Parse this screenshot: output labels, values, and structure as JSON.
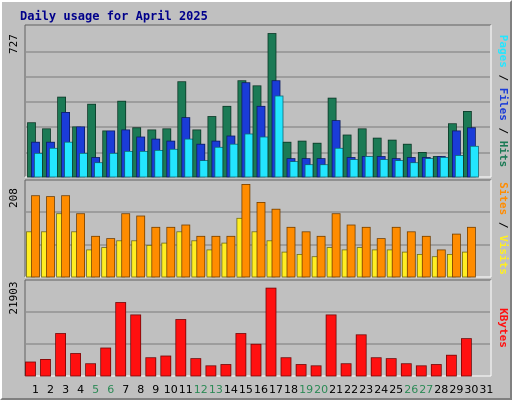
{
  "title": "Daily usage for April 2025",
  "colors": {
    "background": "#c0c0c0",
    "plot_background": "#c0c0c0",
    "grid": "#7a7a7a",
    "hits": "#1b7a55",
    "files": "#1a3cd8",
    "pages": "#23e6ff",
    "visits": "#ffee22",
    "sites": "#ff8c00",
    "kbytes": "#ff1010",
    "weekend_day": "#2c8a56",
    "weekday": "#000000"
  },
  "chart_data": [
    {
      "type": "bar",
      "name": "hits-files-pages",
      "scale_label": "727",
      "right_labels": [
        {
          "text": "Pages",
          "color": "#23e6ff"
        },
        {
          "text": " / ",
          "color": "#000000"
        },
        {
          "text": "Files",
          "color": "#1a3cd8"
        },
        {
          "text": " / ",
          "color": "#000000"
        },
        {
          "text": "Hits",
          "color": "#1b7a55"
        }
      ],
      "ymax": 727,
      "series": [
        {
          "name": "Hits",
          "values": [
            265,
            235,
            390,
            245,
            355,
            225,
            370,
            240,
            230,
            235,
            465,
            230,
            295,
            345,
            470,
            445,
            700,
            170,
            175,
            165,
            385,
            205,
            235,
            190,
            180,
            160,
            120,
            100,
            260,
            320,
            0
          ]
        },
        {
          "name": "Files",
          "values": [
            170,
            170,
            315,
            245,
            95,
            225,
            230,
            195,
            185,
            175,
            290,
            160,
            175,
            200,
            460,
            345,
            470,
            90,
            90,
            90,
            275,
            95,
            100,
            100,
            90,
            95,
            95,
            100,
            225,
            240,
            0
          ]
        },
        {
          "name": "Pages",
          "values": [
            115,
            140,
            170,
            115,
            70,
            115,
            125,
            125,
            130,
            135,
            185,
            80,
            145,
            160,
            210,
            195,
            395,
            75,
            60,
            60,
            140,
            85,
            100,
            85,
            80,
            70,
            90,
            95,
            105,
            150,
            0
          ]
        }
      ]
    },
    {
      "type": "bar",
      "name": "visits-sites",
      "scale_label": "208",
      "right_labels": [
        {
          "text": "Sites",
          "color": "#ff8c00"
        },
        {
          "text": " / ",
          "color": "#000000"
        },
        {
          "text": "Visits",
          "color": "#ffee22"
        }
      ],
      "ymax": 208,
      "series": [
        {
          "name": "Visits",
          "values": [
            100,
            100,
            140,
            100,
            60,
            65,
            80,
            80,
            70,
            75,
            100,
            80,
            60,
            75,
            130,
            100,
            80,
            55,
            50,
            45,
            65,
            60,
            65,
            60,
            60,
            55,
            50,
            45,
            50,
            55,
            0
          ]
        },
        {
          "name": "Sites",
          "values": [
            180,
            178,
            180,
            140,
            90,
            85,
            140,
            135,
            110,
            110,
            115,
            90,
            90,
            90,
            205,
            165,
            150,
            110,
            100,
            90,
            140,
            115,
            110,
            85,
            110,
            100,
            90,
            60,
            95,
            110,
            0
          ]
        }
      ]
    },
    {
      "type": "bar",
      "name": "kbytes",
      "scale_label": "21903",
      "right_labels": [
        {
          "text": "KBytes",
          "color": "#ff1010"
        }
      ],
      "ymax": 21903,
      "series": [
        {
          "name": "KBytes",
          "values": [
            3300,
            3900,
            10000,
            5300,
            2900,
            6600,
            17300,
            14400,
            4300,
            4700,
            13300,
            4100,
            2400,
            2700,
            10000,
            7500,
            20700,
            4300,
            2700,
            2400,
            14400,
            2900,
            9700,
            4300,
            4100,
            2900,
            2400,
            2700,
            4900,
            8800,
            0
          ]
        }
      ]
    }
  ],
  "x_axis": {
    "days": [
      "1",
      "2",
      "3",
      "4",
      "5",
      "6",
      "7",
      "8",
      "9",
      "10",
      "11",
      "12",
      "13",
      "14",
      "15",
      "16",
      "17",
      "18",
      "19",
      "20",
      "21",
      "22",
      "23",
      "24",
      "25",
      "26",
      "27",
      "28",
      "29",
      "30",
      "31"
    ],
    "weekend_days": [
      5,
      6,
      12,
      13,
      19,
      20,
      26,
      27
    ]
  }
}
